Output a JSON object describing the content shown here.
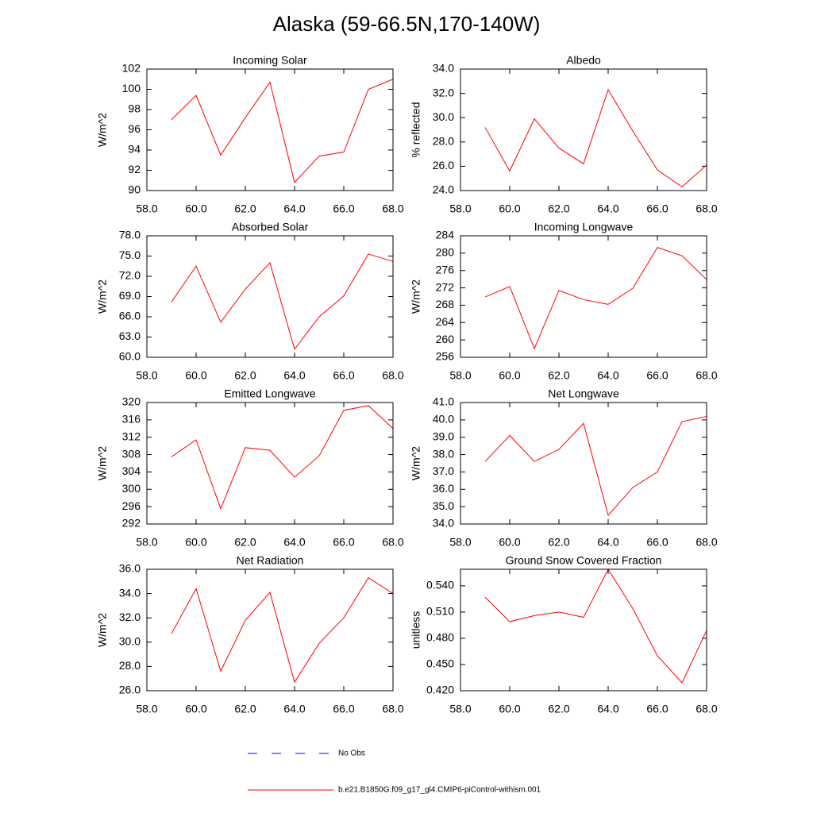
{
  "page_title": "Alaska (59-66.5N,170-140W)",
  "legend": [
    {
      "name": "No Obs",
      "color": "#0000ff",
      "dashed": true
    },
    {
      "name": "b.e21.B1850G.f09_g17_gl4.CMIP6-piControl-withism.001",
      "color": "#ff0000",
      "dashed": false
    }
  ],
  "chart_data": [
    {
      "type": "line",
      "title": "Incoming Solar",
      "y_label": "W/m^2",
      "x": [
        59,
        60,
        61,
        62,
        63,
        64,
        65,
        66,
        67,
        68
      ],
      "series": [
        {
          "color": "#ff0000",
          "values": [
            97.0,
            99.4,
            93.5,
            97.2,
            100.7,
            90.8,
            93.4,
            93.8,
            100.0,
            101.0
          ]
        }
      ],
      "xlim": [
        58,
        68
      ],
      "xticks": [
        {
          "value": 58,
          "label": "58.0"
        },
        {
          "value": 60,
          "label": "60.0"
        },
        {
          "value": 62,
          "label": "62.0"
        },
        {
          "value": 64,
          "label": "64.0"
        },
        {
          "value": 66,
          "label": "66.0"
        },
        {
          "value": 68,
          "label": "68.0"
        }
      ],
      "ylim": [
        90,
        102
      ],
      "yticks": [
        90,
        92,
        94,
        96,
        98,
        100,
        102
      ]
    },
    {
      "type": "line",
      "title": "Albedo",
      "y_label": "% reflected",
      "x": [
        59,
        60,
        61,
        62,
        63,
        64,
        65,
        66,
        67,
        68
      ],
      "series": [
        {
          "color": "#ff0000",
          "values": [
            29.2,
            25.6,
            29.9,
            27.5,
            26.2,
            32.3,
            28.9,
            25.7,
            24.3,
            26.1
          ]
        }
      ],
      "xlim": [
        58,
        68
      ],
      "xticks": [
        {
          "value": 58,
          "label": "58.0"
        },
        {
          "value": 60,
          "label": "60.0"
        },
        {
          "value": 62,
          "label": "62.0"
        },
        {
          "value": 64,
          "label": "64.0"
        },
        {
          "value": 66,
          "label": "66.0"
        },
        {
          "value": 68,
          "label": "68.0"
        }
      ],
      "ylim": [
        24,
        34
      ],
      "yticks": [
        {
          "value": 24,
          "label": "24.0"
        },
        {
          "value": 26,
          "label": "26.0"
        },
        {
          "value": 28,
          "label": "28.0"
        },
        {
          "value": 30,
          "label": "30.0"
        },
        {
          "value": 32,
          "label": "32.0"
        },
        {
          "value": 34,
          "label": "34.0"
        }
      ]
    },
    {
      "type": "line",
      "title": "Absorbed Solar",
      "y_label": "W/m^2",
      "x": [
        59,
        60,
        61,
        62,
        63,
        64,
        65,
        66,
        67,
        68
      ],
      "series": [
        {
          "color": "#ff0000",
          "values": [
            68.2,
            73.5,
            65.2,
            70.1,
            74.0,
            61.2,
            66.0,
            69.1,
            75.3,
            74.2
          ]
        }
      ],
      "xlim": [
        58,
        68
      ],
      "xticks": [
        {
          "value": 58,
          "label": "58.0"
        },
        {
          "value": 60,
          "label": "60.0"
        },
        {
          "value": 62,
          "label": "62.0"
        },
        {
          "value": 64,
          "label": "64.0"
        },
        {
          "value": 66,
          "label": "66.0"
        },
        {
          "value": 68,
          "label": "68.0"
        }
      ],
      "ylim": [
        60,
        78
      ],
      "yticks": [
        {
          "value": 60,
          "label": "60.0"
        },
        {
          "value": 63,
          "label": "63.0"
        },
        {
          "value": 66,
          "label": "66.0"
        },
        {
          "value": 69,
          "label": "69.0"
        },
        {
          "value": 72,
          "label": "72.0"
        },
        {
          "value": 75,
          "label": "75.0"
        },
        {
          "value": 78,
          "label": "78.0"
        }
      ]
    },
    {
      "type": "line",
      "title": "Incoming Longwave",
      "y_label": "W/m^2",
      "x": [
        59,
        60,
        61,
        62,
        63,
        64,
        65,
        66,
        67,
        68
      ],
      "series": [
        {
          "color": "#ff0000",
          "values": [
            269.9,
            272.3,
            258.0,
            271.4,
            269.3,
            268.2,
            271.9,
            281.3,
            279.4,
            273.9
          ]
        }
      ],
      "xlim": [
        58,
        68
      ],
      "xticks": [
        {
          "value": 58,
          "label": "58.0"
        },
        {
          "value": 60,
          "label": "60.0"
        },
        {
          "value": 62,
          "label": "62.0"
        },
        {
          "value": 64,
          "label": "64.0"
        },
        {
          "value": 66,
          "label": "66.0"
        },
        {
          "value": 68,
          "label": "68.0"
        }
      ],
      "ylim": [
        256,
        284
      ],
      "yticks": [
        256,
        260,
        264,
        268,
        272,
        276,
        280,
        284
      ]
    },
    {
      "type": "line",
      "title": "Emitted Longwave",
      "y_label": "W/m^2",
      "x": [
        59,
        60,
        61,
        62,
        63,
        64,
        65,
        66,
        67,
        68
      ],
      "series": [
        {
          "color": "#ff0000",
          "values": [
            307.5,
            311.4,
            295.5,
            309.6,
            309.0,
            302.8,
            307.7,
            318.2,
            319.3,
            314.0
          ]
        }
      ],
      "xlim": [
        58,
        68
      ],
      "xticks": [
        {
          "value": 58,
          "label": "58.0"
        },
        {
          "value": 60,
          "label": "60.0"
        },
        {
          "value": 62,
          "label": "62.0"
        },
        {
          "value": 64,
          "label": "64.0"
        },
        {
          "value": 66,
          "label": "66.0"
        },
        {
          "value": 68,
          "label": "68.0"
        }
      ],
      "ylim": [
        292,
        320
      ],
      "yticks": [
        292,
        296,
        300,
        304,
        308,
        312,
        316,
        320
      ]
    },
    {
      "type": "line",
      "title": "Net Longwave",
      "y_label": "W/m^2",
      "x": [
        59,
        60,
        61,
        62,
        63,
        64,
        65,
        66,
        67,
        68
      ],
      "series": [
        {
          "color": "#ff0000",
          "values": [
            37.6,
            39.1,
            37.6,
            38.3,
            39.8,
            34.5,
            36.1,
            37.0,
            39.9,
            40.2
          ]
        }
      ],
      "xlim": [
        58,
        68
      ],
      "xticks": [
        {
          "value": 58,
          "label": "58.0"
        },
        {
          "value": 60,
          "label": "60.0"
        },
        {
          "value": 62,
          "label": "62.0"
        },
        {
          "value": 64,
          "label": "64.0"
        },
        {
          "value": 66,
          "label": "66.0"
        },
        {
          "value": 68,
          "label": "68.0"
        }
      ],
      "ylim": [
        34,
        41
      ],
      "yticks": [
        {
          "value": 34,
          "label": "34.0"
        },
        {
          "value": 35,
          "label": "35.0"
        },
        {
          "value": 36,
          "label": "36.0"
        },
        {
          "value": 37,
          "label": "37.0"
        },
        {
          "value": 38,
          "label": "38.0"
        },
        {
          "value": 39,
          "label": "39.0"
        },
        {
          "value": 40,
          "label": "40.0"
        },
        {
          "value": 41,
          "label": "41.0"
        }
      ]
    },
    {
      "type": "line",
      "title": "Net Radiation",
      "y_label": "W/m^2",
      "x": [
        59,
        60,
        61,
        62,
        63,
        64,
        65,
        66,
        67,
        68
      ],
      "series": [
        {
          "color": "#ff0000",
          "values": [
            30.7,
            34.4,
            27.6,
            31.8,
            34.1,
            26.7,
            29.9,
            32.0,
            35.3,
            34.0
          ]
        }
      ],
      "xlim": [
        58,
        68
      ],
      "xticks": [
        {
          "value": 58,
          "label": "58.0"
        },
        {
          "value": 60,
          "label": "60.0"
        },
        {
          "value": 62,
          "label": "62.0"
        },
        {
          "value": 64,
          "label": "64.0"
        },
        {
          "value": 66,
          "label": "66.0"
        },
        {
          "value": 68,
          "label": "68.0"
        }
      ],
      "ylim": [
        26,
        36
      ],
      "yticks": [
        {
          "value": 26,
          "label": "26.0"
        },
        {
          "value": 28,
          "label": "28.0"
        },
        {
          "value": 30,
          "label": "30.0"
        },
        {
          "value": 32,
          "label": "32.0"
        },
        {
          "value": 34,
          "label": "34.0"
        },
        {
          "value": 36,
          "label": "36.0"
        }
      ]
    },
    {
      "type": "line",
      "title": "Ground Snow Covered Fraction",
      "y_label": "unitless",
      "x": [
        59,
        60,
        61,
        62,
        63,
        64,
        65,
        66,
        67,
        68
      ],
      "series": [
        {
          "color": "#ff0000",
          "values": [
            0.527,
            0.499,
            0.506,
            0.51,
            0.504,
            0.559,
            0.514,
            0.46,
            0.429,
            0.489
          ]
        }
      ],
      "xlim": [
        58,
        68
      ],
      "xticks": [
        {
          "value": 58,
          "label": "58.0"
        },
        {
          "value": 60,
          "label": "60.0"
        },
        {
          "value": 62,
          "label": "62.0"
        },
        {
          "value": 64,
          "label": "64.0"
        },
        {
          "value": 66,
          "label": "66.0"
        },
        {
          "value": 68,
          "label": "68.0"
        }
      ],
      "ylim": [
        0.42,
        0.559
      ],
      "yticks": [
        {
          "value": 0.42,
          "label": "0.420"
        },
        {
          "value": 0.45,
          "label": "0.450"
        },
        {
          "value": 0.48,
          "label": "0.480"
        },
        {
          "value": 0.51,
          "label": "0.510"
        },
        {
          "value": 0.54,
          "label": "0.540"
        }
      ]
    }
  ]
}
